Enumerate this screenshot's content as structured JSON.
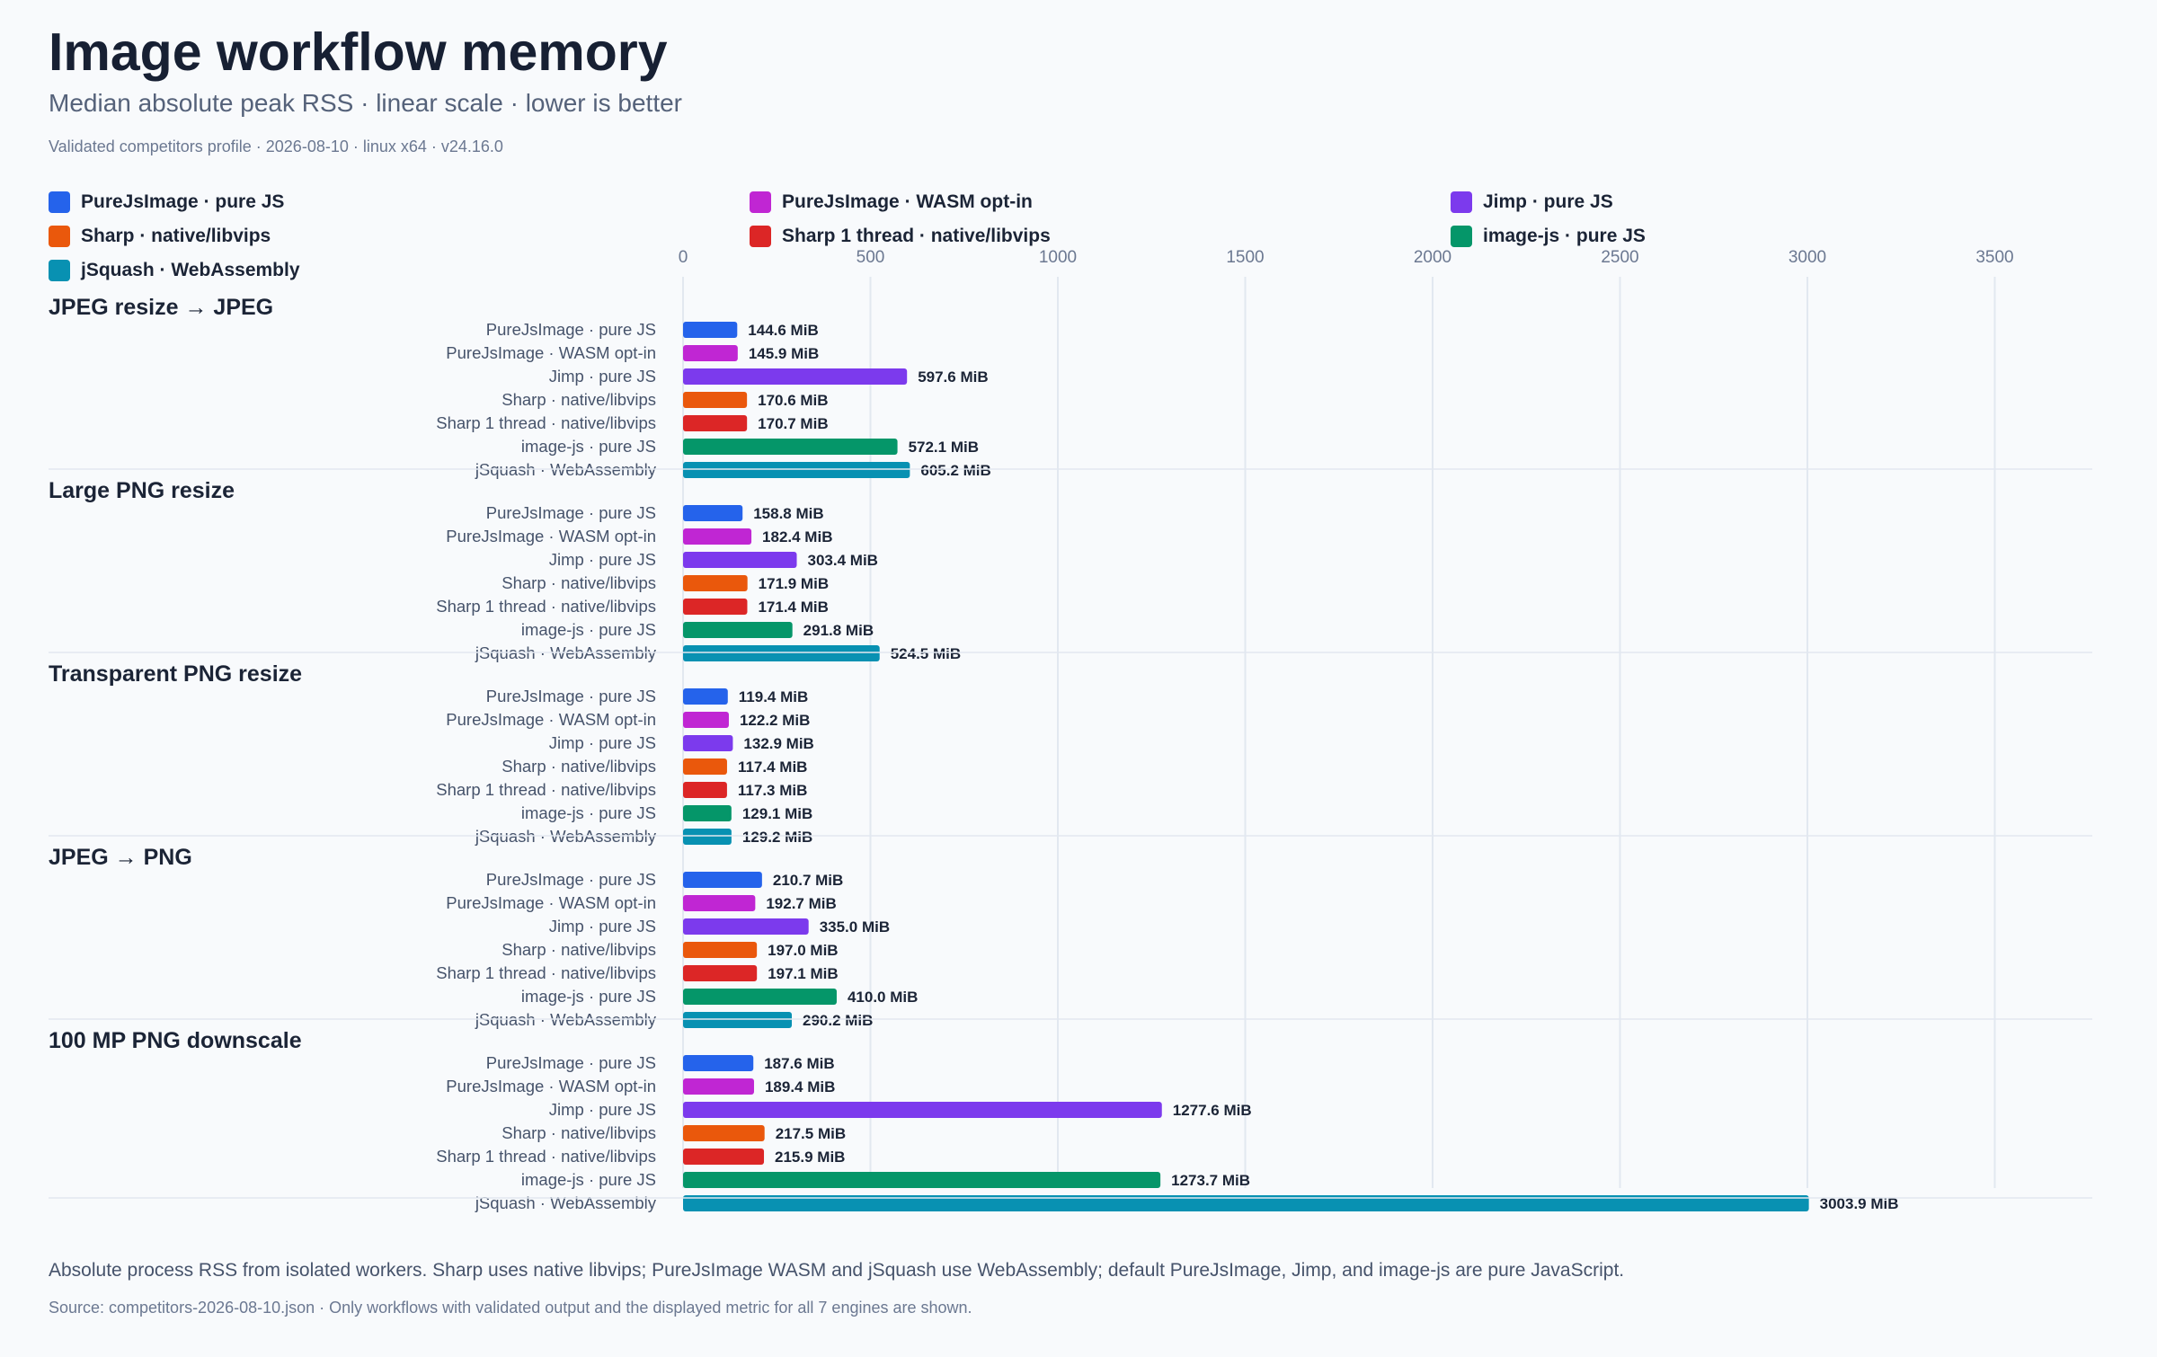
{
  "header": {
    "title": "Image workflow memory",
    "subtitle": "Median absolute peak RSS · linear scale · lower is better",
    "meta": "Validated competitors profile · 2026-08-10 · linux x64 · v24.16.0"
  },
  "legend": [
    {
      "label": "PureJsImage · pure JS",
      "color": "#2563eb"
    },
    {
      "label": "PureJsImage · WASM opt-in",
      "color": "#c026d3"
    },
    {
      "label": "Jimp · pure JS",
      "color": "#7c3aed"
    },
    {
      "label": "Sharp · native/libvips",
      "color": "#ea580c"
    },
    {
      "label": "Sharp 1 thread · native/libvips",
      "color": "#dc2626"
    },
    {
      "label": "image-js · pure JS",
      "color": "#059669"
    },
    {
      "label": "jSquash · WebAssembly",
      "color": "#0891b2"
    }
  ],
  "chart_data": {
    "type": "bar",
    "orientation": "horizontal",
    "unit": "MiB",
    "xlim": [
      0,
      3750
    ],
    "x_ticks": [
      0,
      500,
      1000,
      1500,
      2000,
      2500,
      3000,
      3500
    ],
    "grid": true,
    "engines": [
      "PureJsImage · pure JS",
      "PureJsImage · WASM opt-in",
      "Jimp · pure JS",
      "Sharp · native/libvips",
      "Sharp 1 thread · native/libvips",
      "image-js · pure JS",
      "jSquash · WebAssembly"
    ],
    "groups": [
      {
        "name": "JPEG resize → JPEG",
        "values": [
          144.6,
          145.9,
          597.6,
          170.6,
          170.7,
          572.1,
          605.2
        ],
        "labels": [
          "144.6 MiB",
          "145.9 MiB",
          "597.6 MiB",
          "170.6 MiB",
          "170.7 MiB",
          "572.1 MiB",
          "605.2 MiB"
        ]
      },
      {
        "name": "Large PNG resize",
        "values": [
          158.8,
          182.4,
          303.4,
          171.9,
          171.4,
          291.8,
          524.5
        ],
        "labels": [
          "158.8 MiB",
          "182.4 MiB",
          "303.4 MiB",
          "171.9 MiB",
          "171.4 MiB",
          "291.8 MiB",
          "524.5 MiB"
        ]
      },
      {
        "name": "Transparent PNG resize",
        "values": [
          119.4,
          122.2,
          132.9,
          117.4,
          117.3,
          129.1,
          129.2
        ],
        "labels": [
          "119.4 MiB",
          "122.2 MiB",
          "132.9 MiB",
          "117.4 MiB",
          "117.3 MiB",
          "129.1 MiB",
          "129.2 MiB"
        ]
      },
      {
        "name": "JPEG → PNG",
        "values": [
          210.7,
          192.7,
          335.0,
          197.0,
          197.1,
          410.0,
          290.2
        ],
        "labels": [
          "210.7 MiB",
          "192.7 MiB",
          "335.0 MiB",
          "197.0 MiB",
          "197.1 MiB",
          "410.0 MiB",
          "290.2 MiB"
        ]
      },
      {
        "name": "100 MP PNG downscale",
        "values": [
          187.6,
          189.4,
          1277.6,
          217.5,
          215.9,
          1273.7,
          3003.9
        ],
        "labels": [
          "187.6 MiB",
          "189.4 MiB",
          "1277.6 MiB",
          "217.5 MiB",
          "215.9 MiB",
          "1273.7 MiB",
          "3003.9 MiB"
        ]
      }
    ]
  },
  "footer": {
    "note": "Absolute process RSS from isolated workers. Sharp uses native libvips; PureJsImage WASM and jSquash use WebAssembly; default PureJsImage, Jimp, and image-js are pure JavaScript.",
    "source": "Source: competitors-2026-08-10.json · Only workflows with validated output and the displayed metric for all 7 engines are shown."
  }
}
